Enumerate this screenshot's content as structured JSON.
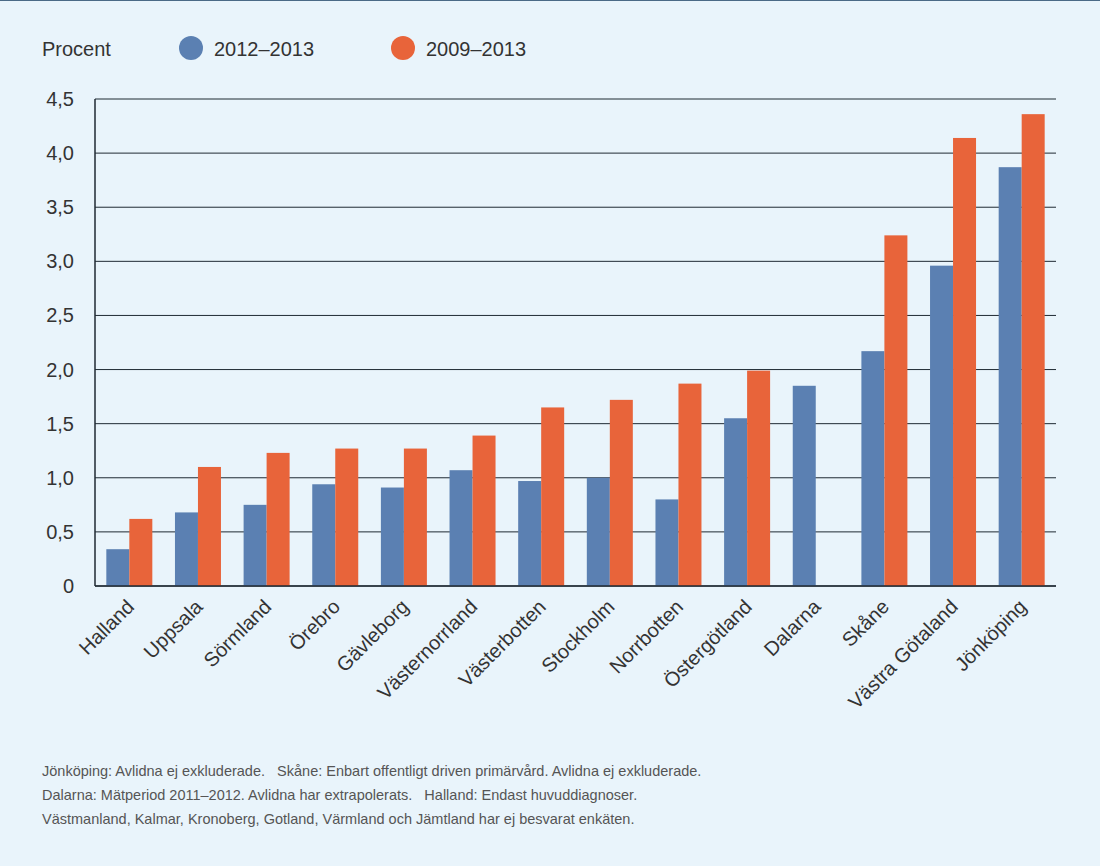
{
  "chart_data": {
    "type": "bar",
    "y_label": "Procent",
    "categories": [
      "Halland",
      "Uppsala",
      "Sörmland",
      "Örebro",
      "Gävleborg",
      "Västernorrland",
      "Västerbotten",
      "Stockholm",
      "Norrbotten",
      "Östergötland",
      "Dalarna",
      "Skåne",
      "Västra Götaland",
      "Jönköping"
    ],
    "series": [
      {
        "name": "2012–2013",
        "color": "#5b80b2",
        "values": [
          0.34,
          0.68,
          0.75,
          0.94,
          0.91,
          1.07,
          0.97,
          1.0,
          0.8,
          1.55,
          1.85,
          2.17,
          2.96,
          3.87
        ]
      },
      {
        "name": "2009–2013",
        "color": "#e8643a",
        "values": [
          0.62,
          1.1,
          1.23,
          1.27,
          1.27,
          1.39,
          1.65,
          1.72,
          1.87,
          1.99,
          null,
          3.24,
          4.14,
          4.36
        ]
      }
    ],
    "ylim": [
      0,
      4.5
    ],
    "yticks": [
      0,
      {
        "value": 0.5,
        "label": "0,5"
      },
      {
        "value": 1.0,
        "label": "1,0"
      },
      {
        "value": 1.5,
        "label": "1,5"
      },
      {
        "value": 2.0,
        "label": "2,0"
      },
      {
        "value": 2.5,
        "label": "2,5"
      },
      {
        "value": 3.0,
        "label": "3,0"
      },
      {
        "value": 3.5,
        "label": "3,5"
      },
      {
        "value": 4.0,
        "label": "4,0"
      },
      {
        "value": 4.5,
        "label": "4,5"
      }
    ],
    "grid": true,
    "legend": "top",
    "annotations": [
      "Jönköping: Avlidna ej exkluderade.   Skåne: Enbart offentligt driven primärvård. Avlidna ej exkluderade.",
      "Dalarna: Mätperiod 2011–2012. Avlidna har extrapolerats.   Halland: Endast huvuddiagnoser.",
      "Västmanland, Kalmar, Kronoberg, Gotland, Värmland och Jämtland har ej besvarat enkäten."
    ]
  }
}
